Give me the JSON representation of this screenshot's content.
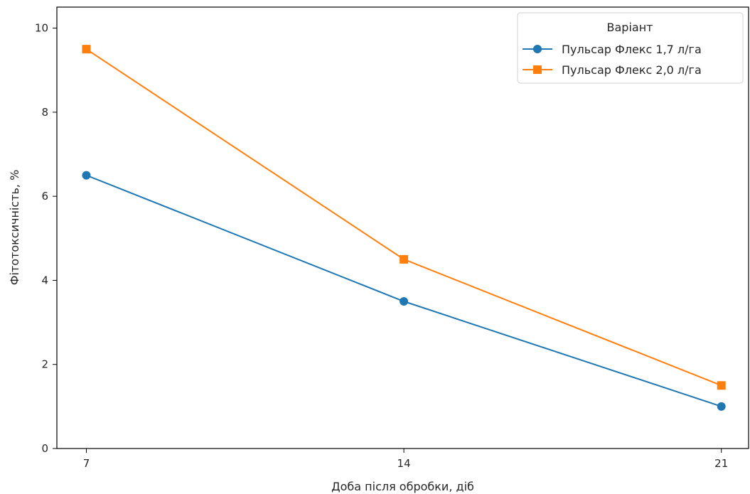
{
  "chart_data": {
    "type": "line",
    "title": "",
    "xlabel": "Доба після обробки, діб",
    "ylabel": "Фітотоксичність, %",
    "x": [
      7,
      14,
      21
    ],
    "x_tick_labels": [
      "7",
      "14",
      "21"
    ],
    "y_tick_labels": [
      "0",
      "2",
      "4",
      "6",
      "8",
      "10"
    ],
    "xlim": [
      6.35,
      21.6
    ],
    "ylim": [
      0,
      10.5
    ],
    "grid": false,
    "legend": {
      "title": "Варіант",
      "placement": "top-right"
    },
    "series": [
      {
        "name": "Пульсар Флекс 1,7 л/га",
        "values": [
          6.5,
          3.5,
          1.0
        ],
        "color": "#1f77b4",
        "marker": "circle"
      },
      {
        "name": "Пульсар Флекс 2,0 л/га",
        "values": [
          9.5,
          4.5,
          1.5
        ],
        "color": "#ff7f0e",
        "marker": "square"
      }
    ]
  }
}
